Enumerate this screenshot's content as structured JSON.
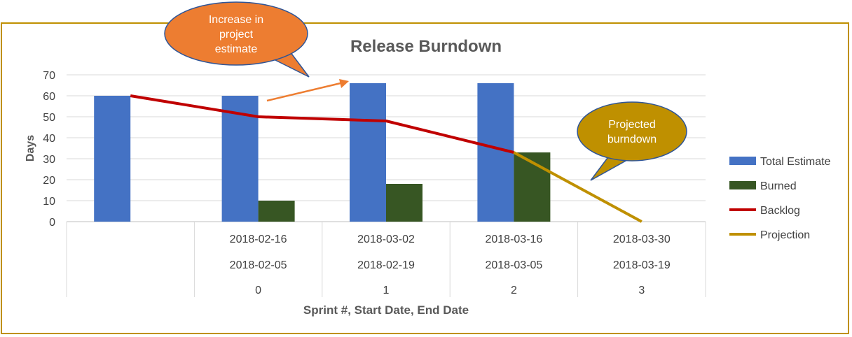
{
  "chart_data": {
    "type": "bar",
    "title": "Release Burndown",
    "xlabel": "Sprint #, Start Date, End Date",
    "ylabel": "Days",
    "ylim": [
      0,
      70
    ],
    "yticks": [
      0,
      10,
      20,
      30,
      40,
      50,
      60,
      70
    ],
    "grid": true,
    "legend_position": "right",
    "categories": [
      {
        "sprint": "",
        "start": "",
        "end": ""
      },
      {
        "sprint": "0",
        "start": "2018-02-05",
        "end": "2018-02-16"
      },
      {
        "sprint": "1",
        "start": "2018-02-19",
        "end": "2018-03-02"
      },
      {
        "sprint": "2",
        "start": "2018-03-05",
        "end": "2018-03-16"
      },
      {
        "sprint": "3",
        "start": "2018-03-19",
        "end": "2018-03-30"
      }
    ],
    "series": [
      {
        "name": "Total Estimate",
        "type": "bar",
        "color": "#4472c4",
        "values": [
          60,
          60,
          66,
          66,
          null
        ]
      },
      {
        "name": "Burned",
        "type": "bar",
        "color": "#375623",
        "values": [
          null,
          10,
          18,
          33,
          null
        ]
      },
      {
        "name": "Backlog",
        "type": "line",
        "color": "#c00000",
        "values": [
          60,
          50,
          48,
          33,
          null
        ]
      },
      {
        "name": "Projection",
        "type": "line",
        "color": "#bf9000",
        "values": [
          null,
          null,
          null,
          33,
          0
        ]
      }
    ],
    "annotations": [
      {
        "text": "Increase in project estimate",
        "color": "#ed7d31"
      },
      {
        "text": "Projected burndown",
        "color": "#bf9000"
      }
    ]
  }
}
